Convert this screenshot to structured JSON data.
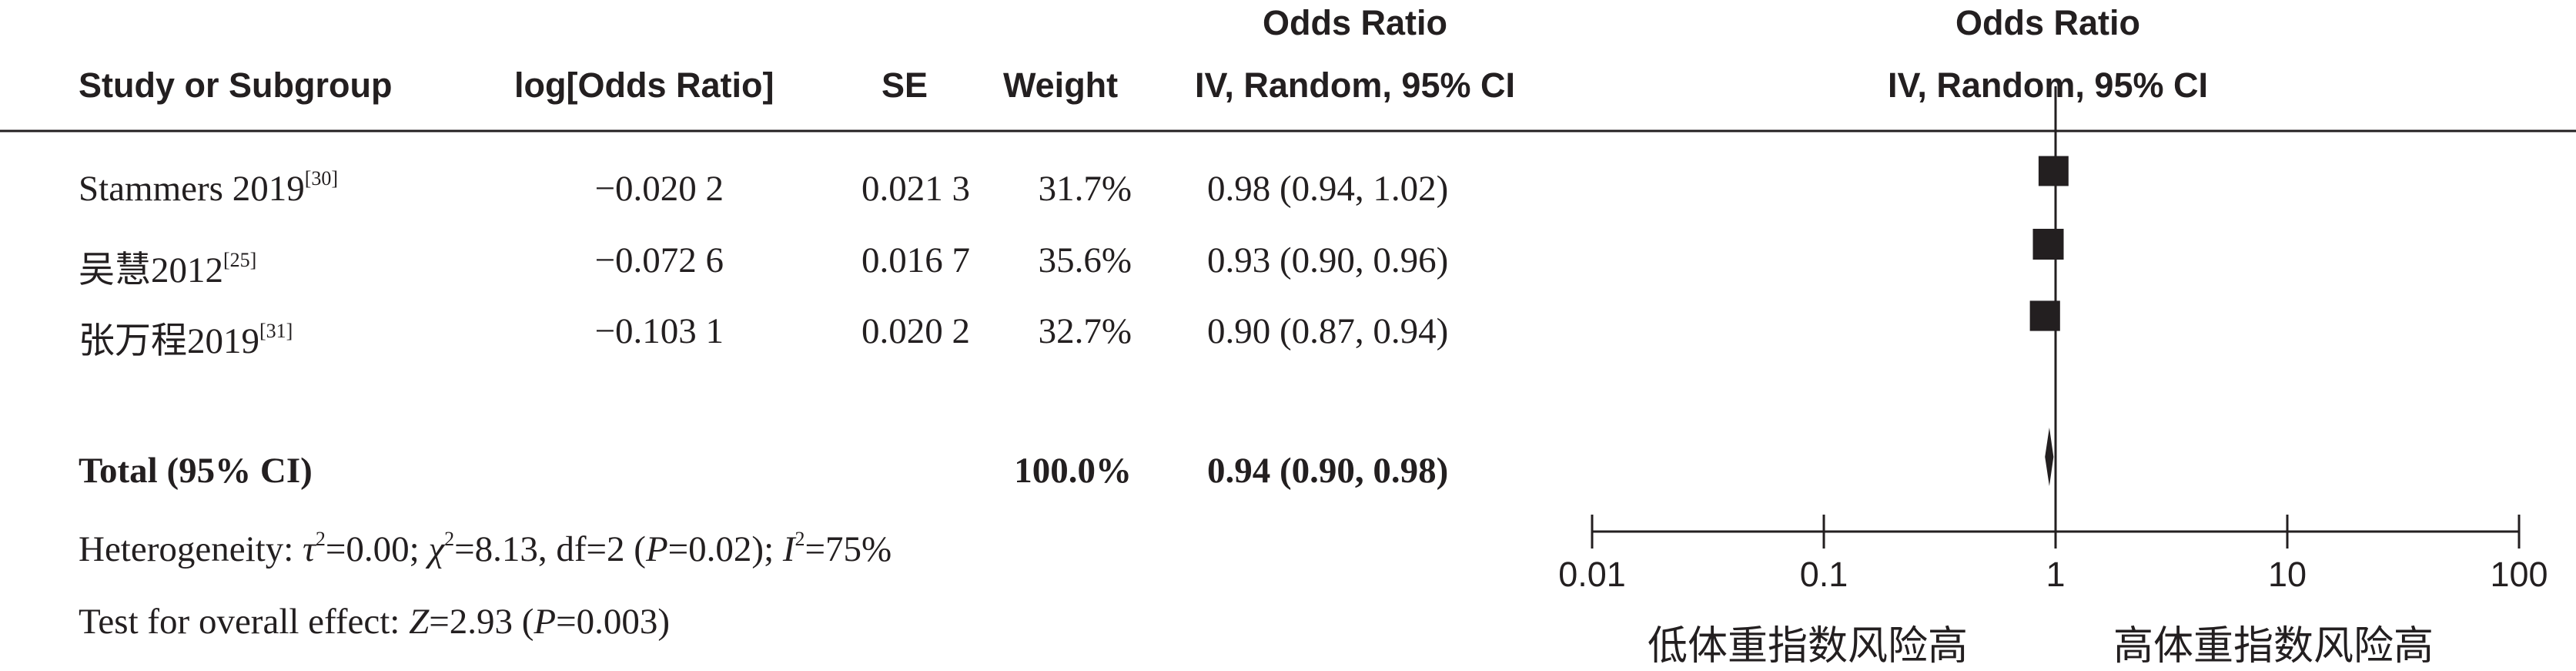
{
  "header": {
    "study": "Study or Subgroup",
    "log_or": "log[Odds Ratio]",
    "se": "SE",
    "weight": "Weight",
    "or_title": "Odds Ratio",
    "or_method": "IV, Random, 95% CI",
    "plot_title": "Odds Ratio",
    "plot_method": "IV, Random, 95% CI"
  },
  "studies": [
    {
      "name": "Stammers 2019",
      "ref": "[30]",
      "log_or": "−0.020 2",
      "se": "0.021 3",
      "weight": "31.7%",
      "ci_text": "0.98 (0.94, 1.02)"
    },
    {
      "name": "吴慧2012",
      "ref": "[25]",
      "log_or": "−0.072 6",
      "se": "0.016 7",
      "weight": "35.6%",
      "ci_text": "0.93 (0.90, 0.96)"
    },
    {
      "name": "张万程2019",
      "ref": "[31]",
      "log_or": "−0.103 1",
      "se": "0.020 2",
      "weight": "32.7%",
      "ci_text": "0.90 (0.87, 0.94)"
    }
  ],
  "total": {
    "label": "Total (95% CI)",
    "weight": "100.0%",
    "ci_text": "0.94 (0.90, 0.98)"
  },
  "heterogeneity": {
    "label": "Heterogeneity: ",
    "tau": "τ",
    "tau_val": "=0.00; ",
    "chi": "χ",
    "chi_val": "=8.13, df=2 (",
    "p": "P",
    "p_val": "=0.02); ",
    "i": "I",
    "i_val": "=75%",
    "sup2": "2"
  },
  "overall_effect": {
    "label": "Test for overall effect: ",
    "z": "Z",
    "z_val": "=2.93 (",
    "p": "P",
    "p_val": "=0.003)"
  },
  "axis": {
    "ticks": [
      "0.01",
      "0.1",
      "1",
      "10",
      "100"
    ],
    "left_label": "低体重指数风险高",
    "right_label": "高体重指数风险高"
  },
  "chart_data": {
    "type": "forest",
    "scale": "log",
    "xlim": [
      0.01,
      100
    ],
    "null_line": 1,
    "studies": [
      {
        "name": "Stammers 2019",
        "or": 0.98,
        "lower": 0.94,
        "upper": 1.02,
        "weight": 31.7
      },
      {
        "name": "吴慧2012",
        "or": 0.93,
        "lower": 0.9,
        "upper": 0.96,
        "weight": 35.6
      },
      {
        "name": "张万程2019",
        "or": 0.9,
        "lower": 0.87,
        "upper": 0.94,
        "weight": 32.7
      }
    ],
    "pooled": {
      "or": 0.94,
      "lower": 0.9,
      "upper": 0.98
    }
  },
  "colors": {
    "ink": "#231f20",
    "background": "#ffffff"
  }
}
